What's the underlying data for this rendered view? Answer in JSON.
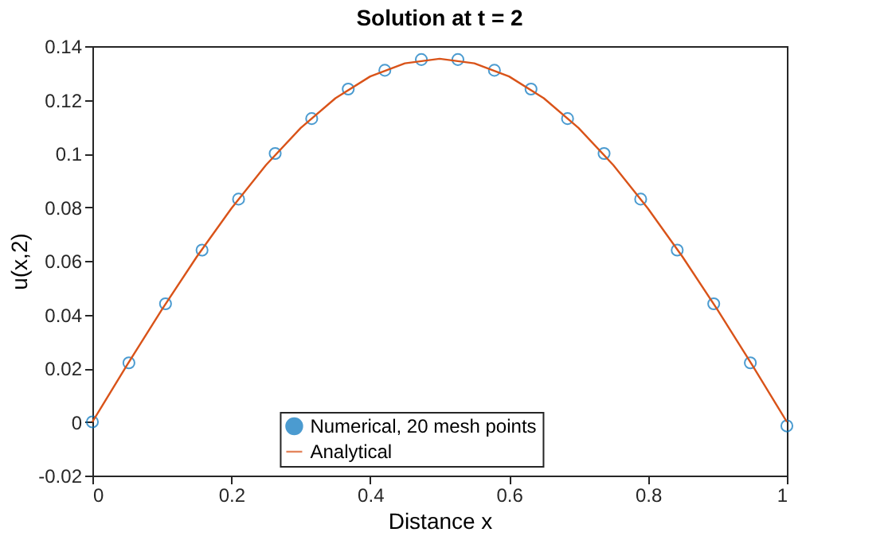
{
  "chart_data": {
    "type": "line",
    "title": "Solution at t = 2",
    "xlabel": "Distance x",
    "ylabel": "u(x,2)",
    "xlim": [
      0,
      1
    ],
    "xticks": [
      0,
      0.2,
      0.4,
      0.6,
      0.8,
      1
    ],
    "ylim": [
      -0.02,
      0.14
    ],
    "yticks": [
      -0.02,
      0,
      0.02,
      0.04,
      0.06,
      0.08,
      0.1,
      0.12,
      0.14
    ],
    "grid": false,
    "legend": "bottom",
    "series": [
      {
        "name": "Numerical, 20 mesh points",
        "type": "scatter",
        "marker": "circle",
        "color": "#0072bd",
        "x": [
          0,
          0.0526,
          0.1053,
          0.1579,
          0.2105,
          0.2632,
          0.3158,
          0.3684,
          0.4211,
          0.4737,
          0.5263,
          0.5789,
          0.6316,
          0.6842,
          0.7368,
          0.7895,
          0.8421,
          0.8947,
          0.9474,
          1
        ],
        "values": [
          0,
          0.022,
          0.044,
          0.064,
          0.083,
          0.1,
          0.113,
          0.124,
          0.131,
          0.135,
          0.135,
          0.131,
          0.124,
          0.113,
          0.1,
          0.083,
          0.064,
          0.044,
          0.022,
          -0.0015
        ]
      },
      {
        "name": "Analytical",
        "type": "line",
        "line_style": "solid",
        "color": "#d95319",
        "x": [
          0,
          0.05,
          0.1,
          0.15,
          0.2,
          0.25,
          0.3,
          0.35,
          0.4,
          0.45,
          0.5,
          0.55,
          0.6,
          0.65,
          0.7,
          0.75,
          0.8,
          0.85,
          0.9,
          0.95,
          1
        ],
        "values": [
          0,
          0.0212,
          0.0418,
          0.0614,
          0.0795,
          0.0957,
          0.1095,
          0.1206,
          0.1287,
          0.1336,
          0.1353,
          0.1336,
          0.1287,
          0.1206,
          0.1095,
          0.0957,
          0.0795,
          0.0614,
          0.0418,
          0.0212,
          0
        ]
      }
    ]
  }
}
